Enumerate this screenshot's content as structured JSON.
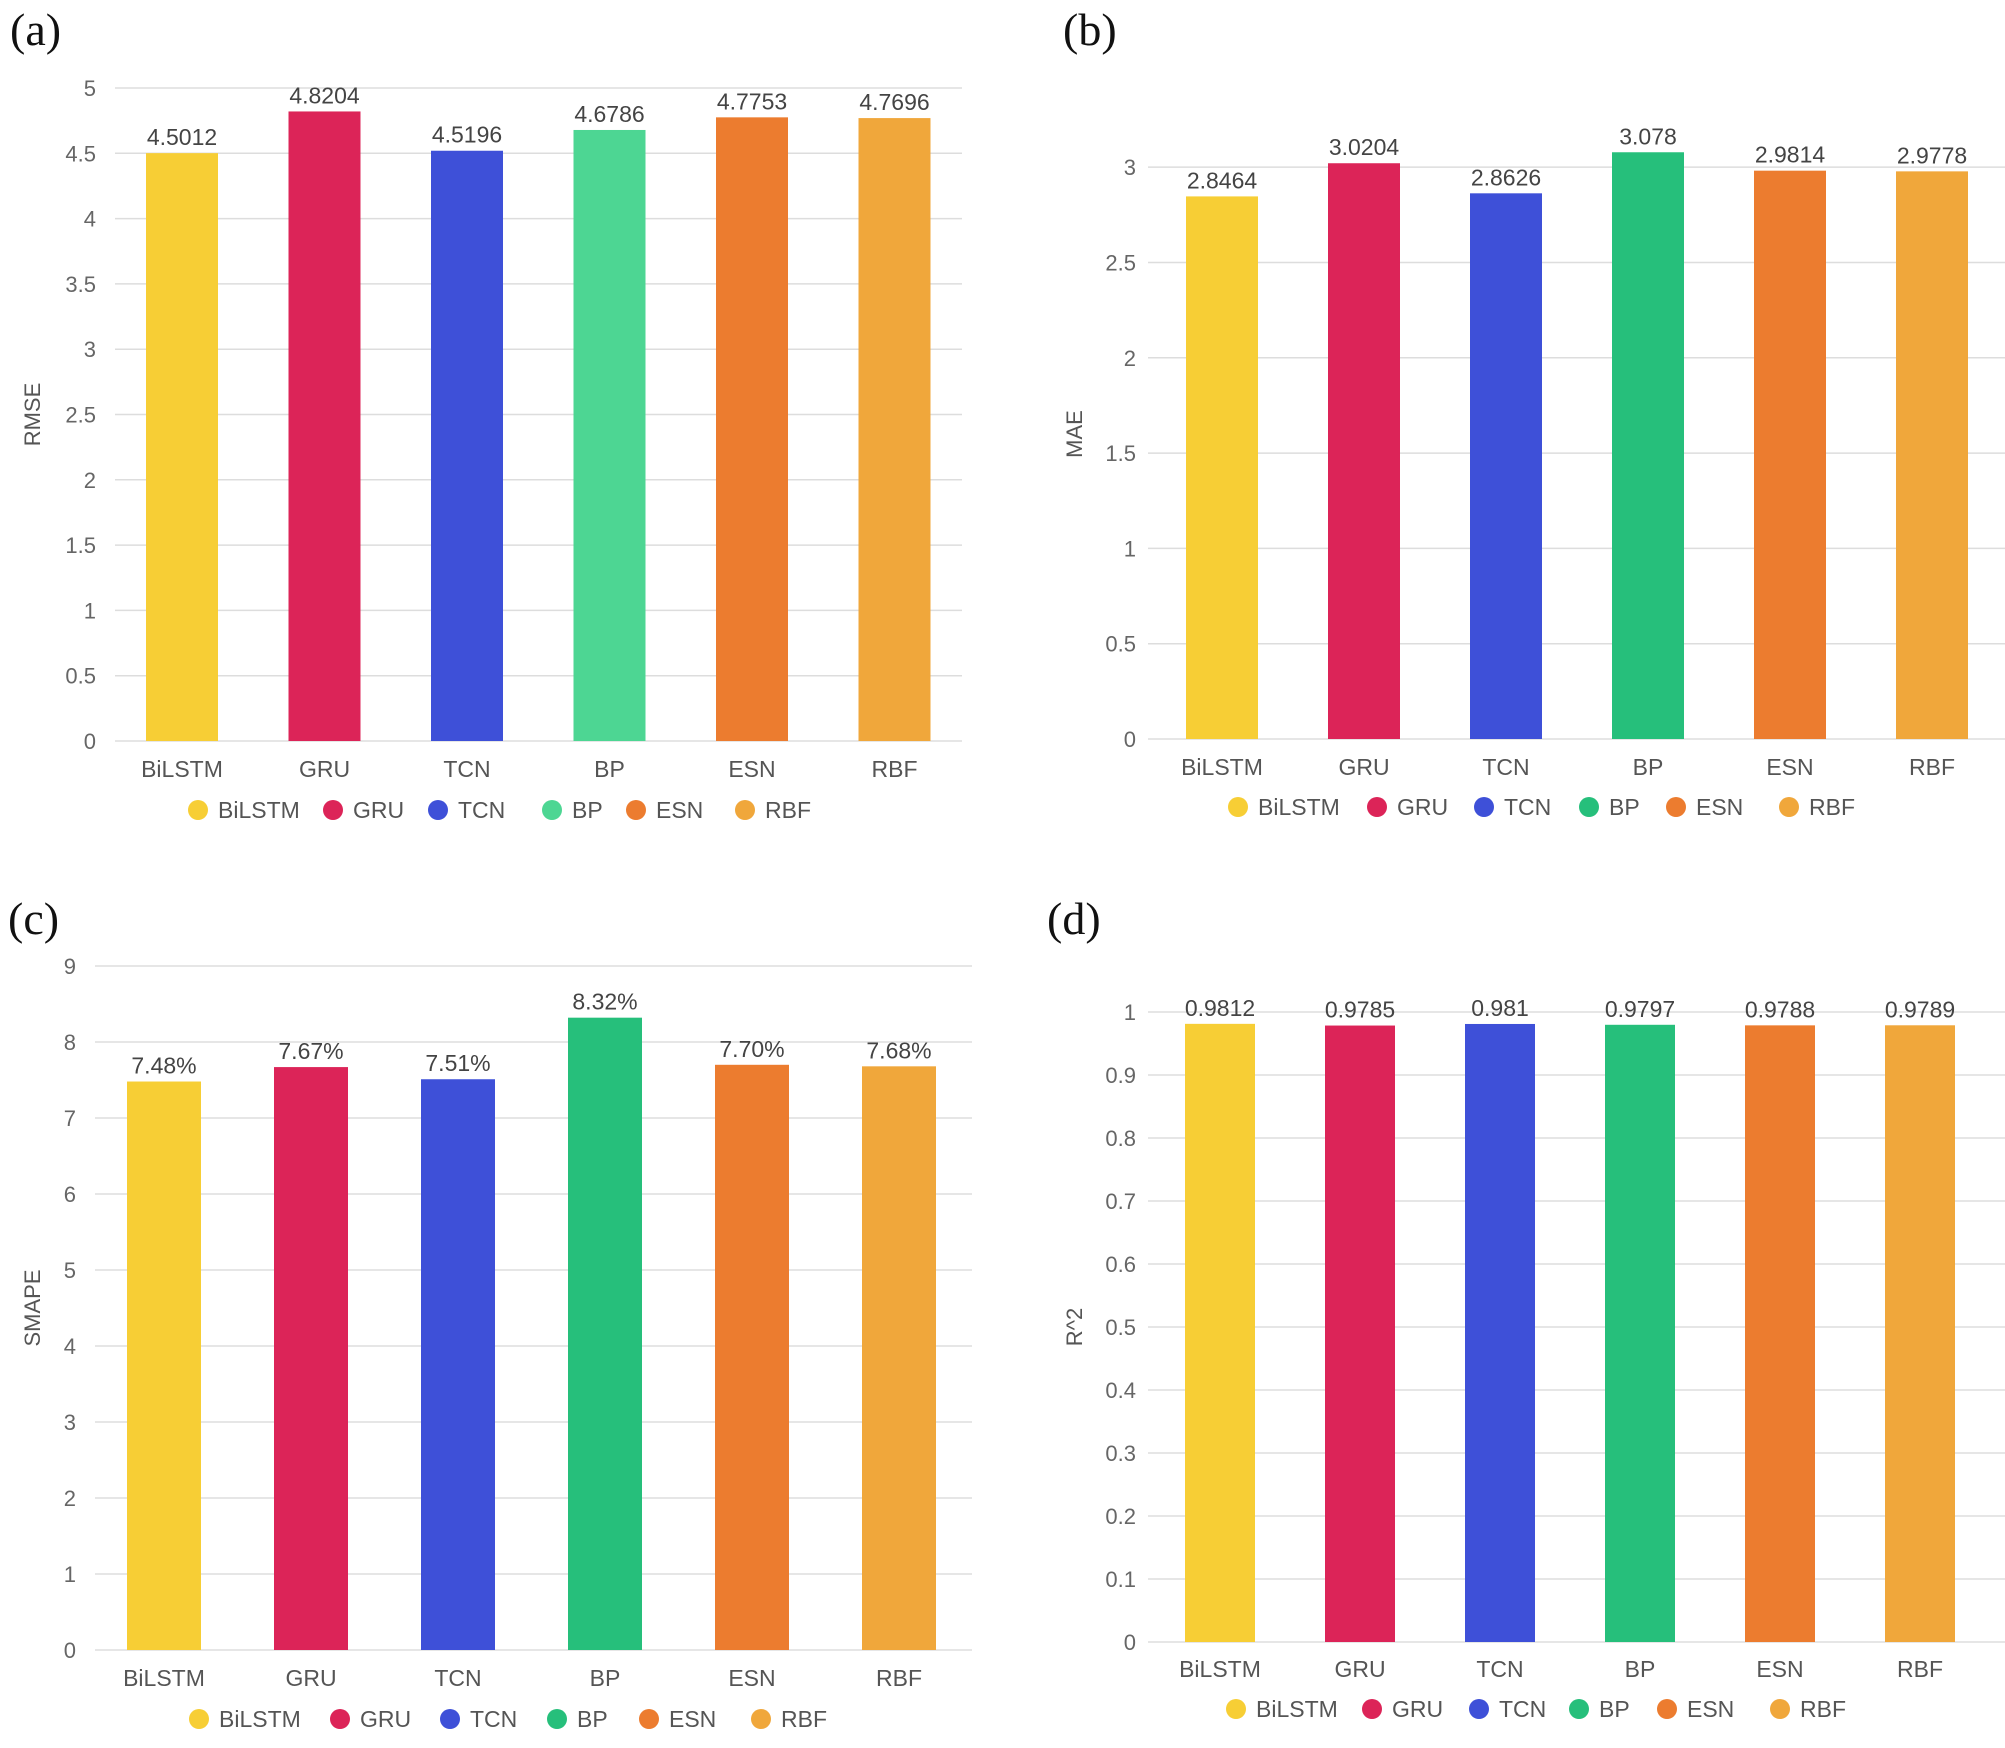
{
  "colors": {
    "BiLSTM": "#f7ce35",
    "GRU": "#dc2458",
    "TCN": "#3e50d8",
    "BP_light": "#4dd693",
    "BP": "#26bf7b",
    "ESN": "#ec7c2f",
    "RBF": "#f0a73b"
  },
  "chart_data": [
    {
      "panel": "(a)",
      "type": "bar",
      "ylabel": "RMSE",
      "ylim": [
        0,
        5
      ],
      "yticks": [
        "0",
        "0.5",
        "1",
        "1.5",
        "2",
        "2.5",
        "3",
        "3.5",
        "4",
        "4.5",
        "5"
      ],
      "categories": [
        "BiLSTM",
        "GRU",
        "TCN",
        "BP",
        "ESN",
        "RBF"
      ],
      "values": [
        4.5012,
        4.8204,
        4.5196,
        4.6786,
        4.7753,
        4.7696
      ],
      "labels": [
        "4.5012",
        "4.8204",
        "4.5196",
        "4.6786",
        "4.7753",
        "4.7696"
      ],
      "legend": [
        "BiLSTM",
        "GRU",
        "TCN",
        "BP",
        "ESN",
        "RBF"
      ],
      "legend_position": "bottom",
      "grid": true
    },
    {
      "panel": "(b)",
      "type": "bar",
      "ylabel": "MAE",
      "ylim": [
        0,
        3.2
      ],
      "yticks": [
        "0",
        "0.5",
        "1",
        "1.5",
        "2",
        "2.5",
        "3"
      ],
      "categories": [
        "BiLSTM",
        "GRU",
        "TCN",
        "BP",
        "ESN",
        "RBF"
      ],
      "values": [
        2.8464,
        3.0204,
        2.8626,
        3.078,
        2.9814,
        2.9778
      ],
      "labels": [
        "2.8464",
        "3.0204",
        "2.8626",
        "3.078",
        "2.9814",
        "2.9778"
      ],
      "legend": [
        "BiLSTM",
        "GRU",
        "TCN",
        "BP",
        "ESN",
        "RBF"
      ],
      "legend_position": "bottom",
      "grid": true
    },
    {
      "panel": "(c)",
      "type": "bar",
      "ylabel": "SMAPE",
      "ylim": [
        0,
        9
      ],
      "yticks": [
        "0",
        "1",
        "2",
        "3",
        "4",
        "5",
        "6",
        "7",
        "8",
        "9"
      ],
      "categories": [
        "BiLSTM",
        "GRU",
        "TCN",
        "BP",
        "ESN",
        "RBF"
      ],
      "values": [
        7.48,
        7.67,
        7.51,
        8.32,
        7.7,
        7.68
      ],
      "labels": [
        "7.48%",
        "7.67%",
        "7.51%",
        "8.32%",
        "7.70%",
        "7.68%"
      ],
      "legend": [
        "BiLSTM",
        "GRU",
        "TCN",
        "BP",
        "ESN",
        "RBF"
      ],
      "legend_position": "bottom",
      "grid": true
    },
    {
      "panel": "(d)",
      "type": "bar",
      "ylabel": "R^2",
      "ylim": [
        0,
        1
      ],
      "yticks": [
        "0",
        "0.1",
        "0.2",
        "0.3",
        "0.4",
        "0.5",
        "0.6",
        "0.7",
        "0.8",
        "0.9",
        "1"
      ],
      "categories": [
        "BiLSTM",
        "GRU",
        "TCN",
        "BP",
        "ESN",
        "RBF"
      ],
      "values": [
        0.9812,
        0.9785,
        0.981,
        0.9797,
        0.9788,
        0.9789
      ],
      "labels": [
        "0.9812",
        "0.9785",
        "0.981",
        "0.9797",
        "0.9788",
        "0.9789"
      ],
      "legend": [
        "BiLSTM",
        "GRU",
        "TCN",
        "BP",
        "ESN",
        "RBF"
      ],
      "legend_position": "bottom",
      "grid": true
    }
  ]
}
